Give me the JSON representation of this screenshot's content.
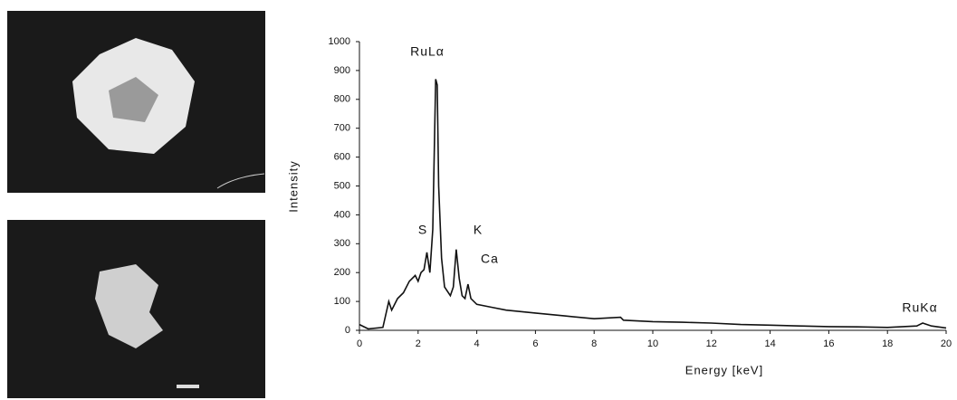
{
  "chart_data": {
    "type": "line",
    "xlabel": "Energy [keV]",
    "ylabel": "Intensity",
    "x": [
      0,
      0.3,
      0.8,
      1.0,
      1.1,
      1.3,
      1.5,
      1.7,
      1.9,
      2.0,
      2.1,
      2.2,
      2.3,
      2.4,
      2.5,
      2.6,
      2.65,
      2.7,
      2.8,
      2.9,
      3.1,
      3.2,
      3.3,
      3.4,
      3.5,
      3.6,
      3.7,
      3.8,
      4,
      4.5,
      5,
      6,
      7,
      8,
      8.9,
      9,
      10,
      11,
      12,
      13,
      14,
      15,
      16,
      17,
      18,
      19,
      19.2,
      19.5,
      20
    ],
    "values": [
      20,
      5,
      10,
      100,
      70,
      110,
      130,
      170,
      190,
      170,
      200,
      210,
      270,
      200,
      350,
      870,
      850,
      500,
      250,
      150,
      120,
      150,
      280,
      180,
      120,
      110,
      160,
      110,
      90,
      80,
      70,
      60,
      50,
      40,
      45,
      35,
      30,
      28,
      25,
      20,
      18,
      15,
      13,
      12,
      10,
      15,
      25,
      15,
      8
    ],
    "color": "#111111",
    "xlim": [
      0,
      20
    ],
    "xticks": [
      0,
      2,
      4,
      6,
      8,
      10,
      12,
      14,
      16,
      18,
      20
    ],
    "ylim": [
      0,
      1000
    ],
    "yticks": [
      0,
      100,
      200,
      300,
      400,
      500,
      600,
      700,
      800,
      900,
      1000
    ],
    "annotations": [
      "RuLα",
      "S",
      "K",
      "Ca",
      "RuKα"
    ]
  }
}
